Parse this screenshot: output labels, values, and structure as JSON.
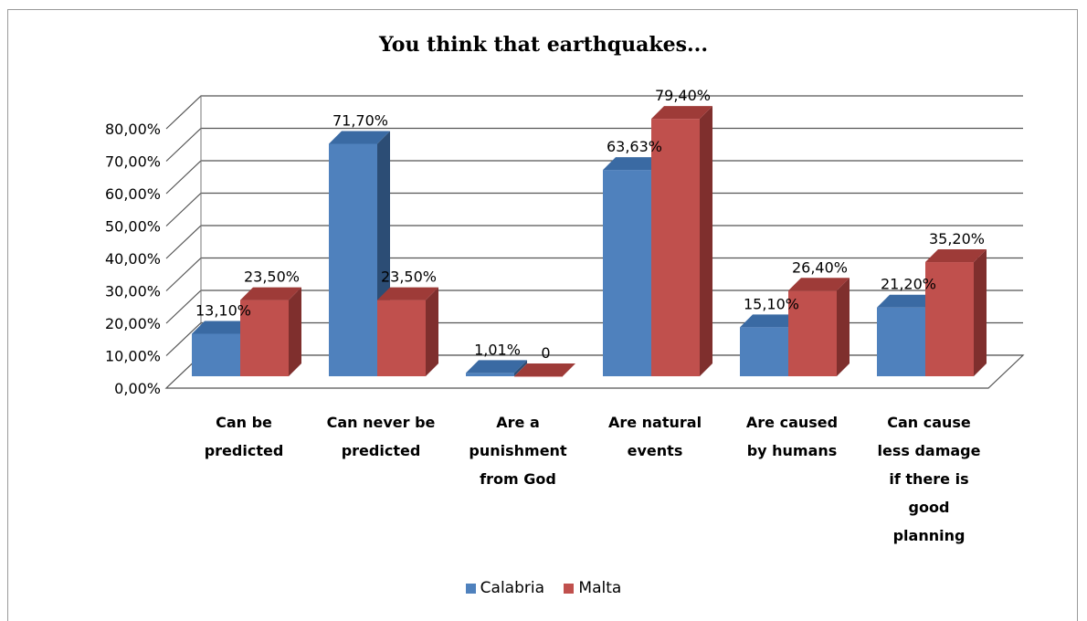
{
  "chart_data": {
    "type": "bar",
    "title": "You think that earthquakes...",
    "categories": [
      "Can be predicted",
      "Can never be predicted",
      "Are a punishment from God",
      "Are natural events",
      "Are caused by humans",
      "Can cause less damage if there is good planning"
    ],
    "category_lines": [
      [
        "Can be",
        "predicted"
      ],
      [
        "Can never be",
        "predicted"
      ],
      [
        "Are a",
        "punishment",
        "from God"
      ],
      [
        "Are natural",
        "events"
      ],
      [
        "Are caused",
        "by humans"
      ],
      [
        "Can cause",
        "less damage",
        "if there is",
        "good",
        "planning"
      ]
    ],
    "series": [
      {
        "name": "Calabria",
        "color": "#4f81bd",
        "side_color": "#2c4d75",
        "top_color": "#3a6aa3",
        "values": [
          13.1,
          71.7,
          1.01,
          63.63,
          15.1,
          21.2
        ],
        "labels": [
          "13,10%",
          "71,70%",
          "1,01%",
          "63,63%",
          "15,10%",
          "21,20%"
        ]
      },
      {
        "name": "Malta",
        "color": "#c0504d",
        "side_color": "#7f2f2d",
        "top_color": "#9e3b38",
        "values": [
          23.5,
          23.5,
          0,
          79.4,
          26.4,
          35.2
        ],
        "labels": [
          "23,50%",
          "23,50%",
          "0",
          "79,40%",
          "26,40%",
          "35,20%"
        ]
      }
    ],
    "y_ticks": [
      "0,00%",
      "10,00%",
      "20,00%",
      "30,00%",
      "40,00%",
      "50,00%",
      "60,00%",
      "70,00%",
      "80,00%"
    ],
    "ylim": [
      0,
      80
    ],
    "grid": true,
    "legend_position": "bottom"
  }
}
